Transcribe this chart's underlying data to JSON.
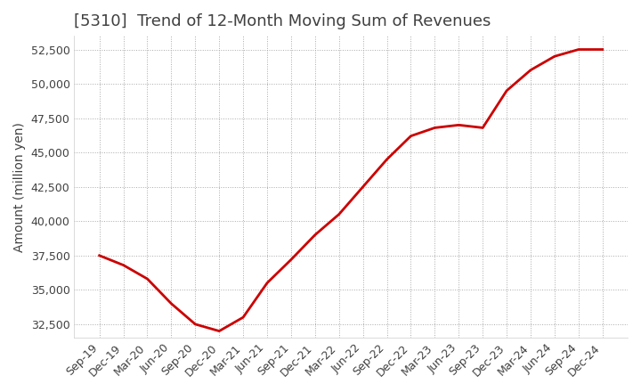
{
  "title": "[5310]  Trend of 12-Month Moving Sum of Revenues",
  "ylabel": "Amount (million yen)",
  "x_labels": [
    "Sep-19",
    "Dec-19",
    "Mar-20",
    "Jun-20",
    "Sep-20",
    "Dec-20",
    "Mar-21",
    "Jun-21",
    "Sep-21",
    "Dec-21",
    "Mar-22",
    "Jun-22",
    "Sep-22",
    "Dec-22",
    "Mar-23",
    "Jun-23",
    "Sep-23",
    "Dec-23",
    "Mar-24",
    "Jun-24",
    "Sep-24",
    "Dec-24"
  ],
  "values": [
    37500,
    36800,
    35800,
    34000,
    32500,
    32000,
    33000,
    35500,
    37200,
    39000,
    40500,
    42500,
    44500,
    46200,
    46800,
    47000,
    46800,
    49500,
    51000,
    52000,
    52500,
    52500
  ],
  "ylim": [
    31500,
    53500
  ],
  "yticks": [
    32500,
    35000,
    37500,
    40000,
    42500,
    45000,
    47500,
    50000,
    52500
  ],
  "line_color": "#cc0000",
  "bg_color": "#ffffff",
  "grid_color": "#aaaaaa",
  "title_color": "#404040",
  "title_fontsize": 13,
  "label_fontsize": 10,
  "tick_fontsize": 9
}
